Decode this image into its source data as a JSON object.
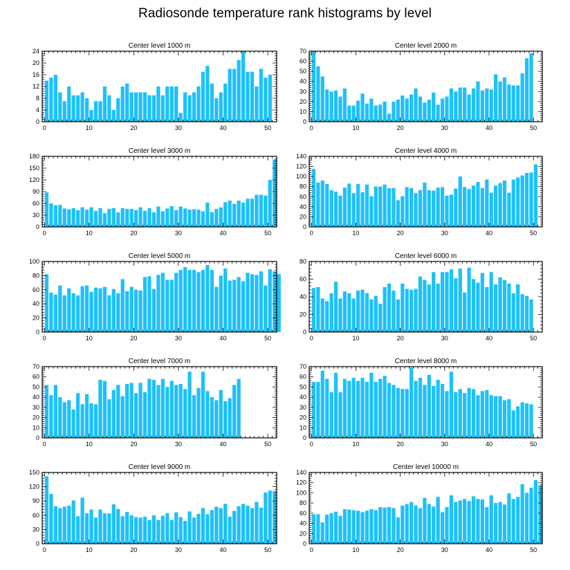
{
  "title": "Radiosonde temperature rank histograms by level",
  "colors": {
    "bar": "#1ec1f8",
    "axis": "#000000",
    "background": "#ffffff"
  },
  "chart_data": [
    {
      "type": "bar",
      "title": "Center level 1000 m",
      "xlim": [
        -0.5,
        52
      ],
      "xticks": [
        0,
        10,
        20,
        30,
        40,
        50
      ],
      "ylim": [
        0,
        24
      ],
      "yticks": [
        0,
        4,
        8,
        12,
        16,
        20,
        24
      ],
      "values": [
        14,
        15,
        16,
        10,
        7,
        12,
        9,
        9,
        10,
        8,
        4,
        7,
        7,
        12,
        9,
        4,
        8,
        12,
        13,
        10,
        10,
        10,
        10,
        9,
        9,
        12,
        9,
        12,
        12,
        12,
        3,
        10,
        9,
        10,
        12,
        17,
        19,
        13,
        8,
        10,
        13,
        18,
        18,
        21,
        24,
        17,
        17,
        12,
        18,
        15,
        16
      ]
    },
    {
      "type": "bar",
      "title": "Center level 2000 m",
      "xlim": [
        -0.5,
        52
      ],
      "xticks": [
        0,
        10,
        20,
        30,
        40,
        50
      ],
      "ylim": [
        0,
        70
      ],
      "yticks": [
        0,
        10,
        20,
        30,
        40,
        50,
        60,
        70
      ],
      "values": [
        70,
        55,
        45,
        32,
        30,
        31,
        25,
        33,
        16,
        16,
        21,
        28,
        18,
        23,
        16,
        17,
        20,
        8,
        20,
        22,
        26,
        23,
        27,
        33,
        25,
        19,
        22,
        29,
        17,
        23,
        25,
        33,
        30,
        34,
        34,
        27,
        33,
        40,
        31,
        33,
        32,
        47,
        40,
        44,
        37,
        36,
        36,
        48,
        63,
        68
      ]
    },
    {
      "type": "bar",
      "title": "Center level 3000 m",
      "xlim": [
        -0.5,
        52
      ],
      "xticks": [
        0,
        10,
        20,
        30,
        40,
        50
      ],
      "ylim": [
        0,
        180
      ],
      "yticks": [
        0,
        30,
        60,
        90,
        120,
        150,
        180
      ],
      "values": [
        88,
        60,
        55,
        56,
        47,
        45,
        48,
        43,
        50,
        44,
        50,
        41,
        48,
        35,
        46,
        48,
        37,
        48,
        46,
        46,
        43,
        50,
        41,
        48,
        37,
        52,
        40,
        47,
        53,
        43,
        52,
        47,
        44,
        45,
        44,
        40,
        62,
        38,
        46,
        50,
        63,
        67,
        59,
        67,
        62,
        72,
        72,
        82,
        82,
        80,
        120,
        172
      ]
    },
    {
      "type": "bar",
      "title": "Center level 4000 m",
      "xlim": [
        -0.5,
        52
      ],
      "xticks": [
        0,
        10,
        20,
        30,
        40,
        50
      ],
      "ylim": [
        0,
        140
      ],
      "yticks": [
        0,
        20,
        40,
        60,
        80,
        100,
        120,
        140
      ],
      "values": [
        115,
        88,
        92,
        85,
        73,
        70,
        62,
        78,
        86,
        67,
        85,
        69,
        84,
        61,
        80,
        80,
        84,
        77,
        77,
        53,
        61,
        79,
        77,
        67,
        73,
        88,
        73,
        72,
        78,
        79,
        62,
        64,
        76,
        100,
        79,
        75,
        82,
        89,
        77,
        94,
        68,
        82,
        87,
        92,
        68,
        94,
        98,
        102,
        107,
        108,
        124
      ]
    },
    {
      "type": "bar",
      "title": "Center level 5000 m",
      "xlim": [
        -0.5,
        52
      ],
      "xticks": [
        0,
        10,
        20,
        30,
        40,
        50
      ],
      "ylim": [
        0,
        100
      ],
      "yticks": [
        0,
        20,
        40,
        60,
        80,
        100
      ],
      "values": [
        82,
        56,
        53,
        66,
        52,
        62,
        55,
        52,
        65,
        66,
        57,
        63,
        62,
        64,
        52,
        61,
        55,
        75,
        58,
        64,
        60,
        59,
        78,
        79,
        61,
        81,
        84,
        74,
        74,
        84,
        88,
        92,
        88,
        88,
        85,
        88,
        95,
        88,
        64,
        80,
        90,
        73,
        74,
        78,
        72,
        84,
        82,
        81,
        86,
        66,
        89,
        86,
        82
      ]
    },
    {
      "type": "bar",
      "title": "Center level 6000 m",
      "xlim": [
        -0.5,
        52
      ],
      "xticks": [
        0,
        10,
        20,
        30,
        40,
        50
      ],
      "ylim": [
        0,
        80
      ],
      "yticks": [
        0,
        20,
        40,
        60,
        80
      ],
      "values": [
        50,
        51,
        38,
        35,
        44,
        57,
        38,
        46,
        44,
        38,
        47,
        48,
        44,
        37,
        41,
        32,
        51,
        55,
        47,
        37,
        55,
        49,
        48,
        49,
        63,
        59,
        54,
        68,
        55,
        68,
        68,
        71,
        61,
        72,
        45,
        73,
        60,
        56,
        67,
        51,
        68,
        54,
        62,
        59,
        55,
        44,
        54,
        43,
        41,
        37
      ]
    },
    {
      "type": "bar",
      "title": "Center level 7000 m",
      "xlim": [
        -0.5,
        52
      ],
      "xticks": [
        0,
        10,
        20,
        30,
        40,
        50
      ],
      "ylim": [
        0,
        70
      ],
      "yticks": [
        0,
        10,
        20,
        30,
        40,
        50,
        60,
        70
      ],
      "values": [
        52,
        42,
        52,
        40,
        35,
        37,
        28,
        44,
        33,
        43,
        34,
        33,
        57,
        56,
        38,
        47,
        52,
        41,
        53,
        54,
        44,
        54,
        45,
        58,
        57,
        52,
        58,
        50,
        56,
        52,
        53,
        48,
        65,
        42,
        49,
        65,
        46,
        40,
        37,
        47,
        36,
        39,
        52,
        58
      ]
    },
    {
      "type": "bar",
      "title": "Center level 8000 m",
      "xlim": [
        -0.5,
        52
      ],
      "xticks": [
        0,
        10,
        20,
        30,
        40,
        50
      ],
      "ylim": [
        0,
        70
      ],
      "yticks": [
        0,
        10,
        20,
        30,
        40,
        50,
        60,
        70
      ],
      "values": [
        55,
        55,
        66,
        58,
        45,
        64,
        45,
        58,
        56,
        59,
        56,
        59,
        55,
        64,
        55,
        58,
        61,
        54,
        52,
        49,
        48,
        48,
        69,
        56,
        59,
        52,
        62,
        51,
        57,
        53,
        46,
        65,
        45,
        48,
        44,
        49,
        48,
        42,
        46,
        47,
        42,
        41,
        41,
        37,
        38,
        27,
        31,
        35,
        34,
        33
      ]
    },
    {
      "type": "bar",
      "title": "Center level 9000 m",
      "xlim": [
        -0.5,
        52
      ],
      "xticks": [
        0,
        10,
        20,
        30,
        40,
        50
      ],
      "ylim": [
        0,
        150
      ],
      "yticks": [
        0,
        30,
        60,
        90,
        120,
        150
      ],
      "values": [
        142,
        105,
        79,
        75,
        78,
        80,
        91,
        58,
        97,
        64,
        72,
        55,
        72,
        64,
        64,
        83,
        73,
        58,
        67,
        60,
        56,
        55,
        57,
        50,
        60,
        50,
        59,
        64,
        50,
        66,
        56,
        48,
        68,
        55,
        63,
        75,
        62,
        71,
        78,
        75,
        84,
        57,
        69,
        79,
        84,
        80,
        75,
        88,
        76,
        108,
        112,
        111
      ]
    },
    {
      "type": "bar",
      "title": "Center level 10000 m",
      "xlim": [
        -0.5,
        52
      ],
      "xticks": [
        0,
        10,
        20,
        30,
        40,
        50
      ],
      "ylim": [
        0,
        140
      ],
      "yticks": [
        0,
        20,
        40,
        60,
        80,
        100,
        120,
        140
      ],
      "values": [
        58,
        58,
        42,
        57,
        60,
        63,
        55,
        68,
        67,
        66,
        65,
        62,
        65,
        68,
        66,
        72,
        71,
        72,
        70,
        52,
        75,
        78,
        82,
        75,
        70,
        90,
        78,
        73,
        92,
        62,
        72,
        95,
        82,
        85,
        88,
        84,
        93,
        88,
        87,
        72,
        95,
        80,
        82,
        77,
        99,
        88,
        92,
        117,
        100,
        110,
        125,
        115
      ]
    }
  ]
}
